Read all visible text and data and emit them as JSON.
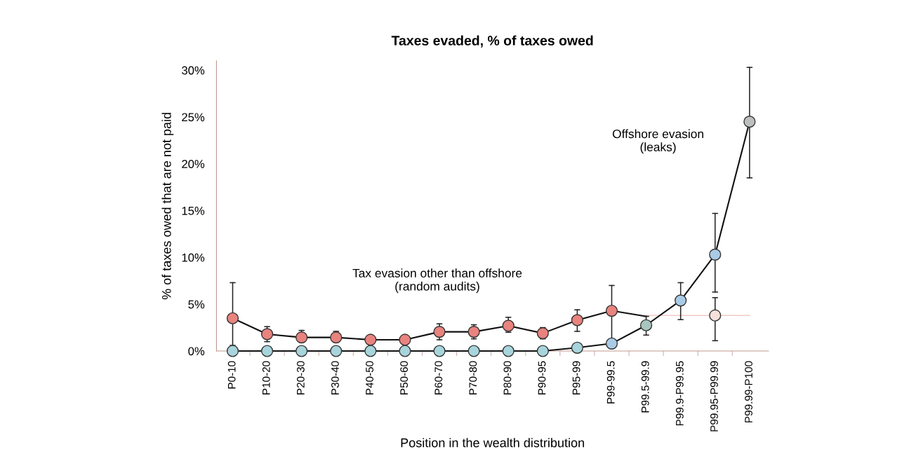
{
  "chart_data": {
    "type": "line",
    "title": "Taxes evaded, % of taxes owed",
    "xlabel": "Position in the wealth distribution",
    "ylabel": "% of taxes owed that are not paid",
    "categories": [
      "P0-10",
      "P10-20",
      "P20-30",
      "P30-40",
      "P40-50",
      "P50-60",
      "P60-70",
      "P70-80",
      "P80-90",
      "P90-95",
      "P95-99",
      "P99-99.5",
      "P99.5-99.9",
      "P99.9-P99.95",
      "P99.95-P99.99",
      "P99.99-P100"
    ],
    "ylim": [
      0,
      31
    ],
    "yticks": [
      {
        "value": 0,
        "label": "0%"
      },
      {
        "value": 5,
        "label": "5%"
      },
      {
        "value": 10,
        "label": "10%"
      },
      {
        "value": 15,
        "label": "15%"
      },
      {
        "value": 20,
        "label": "20%"
      },
      {
        "value": 25,
        "label": "25%"
      },
      {
        "value": 30,
        "label": "30%"
      }
    ],
    "grid": false,
    "legend": false,
    "marker": "circle",
    "line_style": "solid",
    "series": [
      {
        "type": "line",
        "color": "#f2c9c4",
        "marker": "none",
        "values": [
          null,
          null,
          null,
          null,
          null,
          null,
          null,
          null,
          null,
          null,
          null,
          null,
          3.8,
          3.8,
          3.8,
          3.8
        ]
      },
      {
        "color": "#e8837e",
        "colors": [
          "#e8837e",
          "#e8837e",
          "#e8837e",
          "#e8837e",
          "#e8837e",
          "#e8837e",
          "#e8837e",
          "#e8837e",
          "#e8837e",
          "#e8837e",
          "#e8837e",
          "#e8837e",
          null,
          null,
          null,
          null
        ],
        "values": [
          3.5,
          1.8,
          1.45,
          1.45,
          1.2,
          1.2,
          2.05,
          2.05,
          2.7,
          1.9,
          3.3,
          4.3,
          3.7,
          null,
          null,
          null
        ],
        "errors": [
          [
            0.6,
            7.3
          ],
          [
            1.0,
            2.6
          ],
          [
            1.0,
            2.2
          ],
          [
            1.0,
            2.1
          ],
          null,
          null,
          [
            1.2,
            2.9
          ],
          [
            1.3,
            2.8
          ],
          [
            2.0,
            3.6
          ],
          [
            1.3,
            2.5
          ],
          [
            2.1,
            4.4
          ],
          [
            1.3,
            7.0
          ],
          null,
          null,
          null,
          null
        ]
      },
      {
        "color": "#f6e0dc",
        "values": [
          null,
          null,
          null,
          null,
          null,
          null,
          null,
          null,
          null,
          null,
          null,
          null,
          null,
          null,
          3.8,
          null
        ],
        "errors": [
          null,
          null,
          null,
          null,
          null,
          null,
          null,
          null,
          null,
          null,
          null,
          null,
          null,
          null,
          [
            1.1,
            5.7
          ],
          null
        ]
      },
      {
        "color": "#a8d4dc",
        "colors": [
          "#a8d4dc",
          "#a8d4dc",
          "#a8d4dc",
          "#a8d4dc",
          "#a8d4dc",
          "#a8d4dc",
          "#a8d4dc",
          "#a8d4dc",
          "#a8d4dc",
          "#a8d4dc",
          "#a8d4dc",
          "#a9cbe6",
          "#a8c6c0",
          "#a9cbe6",
          "#a9cbe6",
          "#bcbfbf"
        ],
        "values": [
          0,
          0,
          0,
          0,
          0,
          0,
          0,
          0,
          0,
          0,
          0.35,
          0.8,
          2.75,
          5.4,
          10.3,
          24.5
        ],
        "errors": [
          null,
          null,
          null,
          null,
          null,
          null,
          null,
          null,
          null,
          null,
          null,
          null,
          [
            1.7,
            3.7
          ],
          [
            3.35,
            7.3
          ],
          [
            6.3,
            14.7
          ],
          [
            18.5,
            30.3
          ]
        ]
      }
    ],
    "annotations": [
      "Tax evasion other than offshore\n(random audits)",
      "Offshore evasion\n(leaks)"
    ]
  }
}
